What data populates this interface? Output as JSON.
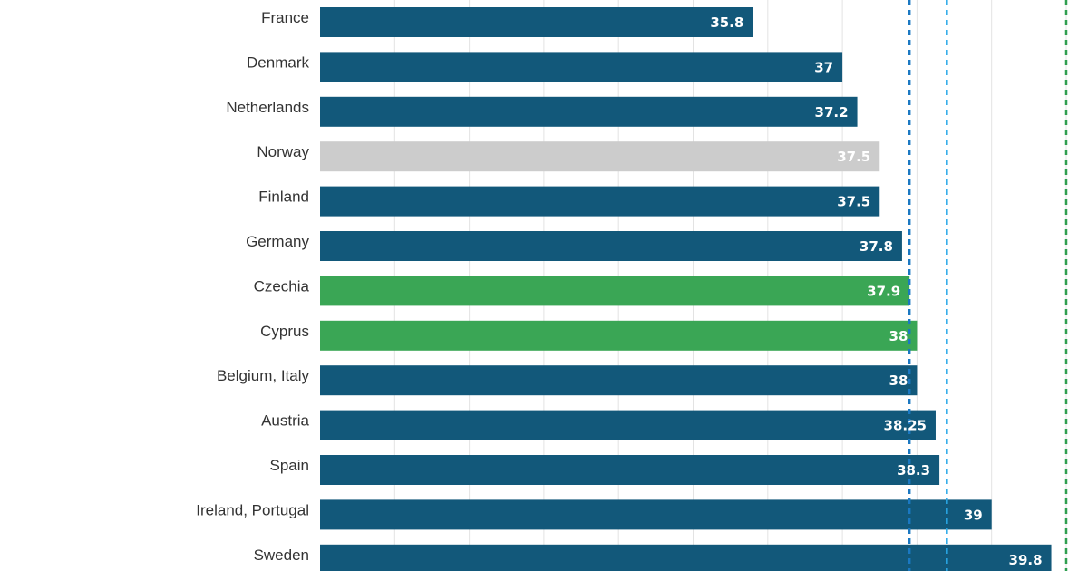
{
  "chart_data": {
    "type": "bar",
    "orientation": "horizontal",
    "categories": [
      "France",
      "Denmark",
      "Netherlands",
      "Norway",
      "Finland",
      "Germany",
      "Czechia",
      "Cyprus",
      "Belgium, Italy",
      "Austria",
      "Spain",
      "Ireland, Portugal",
      "Sweden"
    ],
    "values": [
      35.8,
      37,
      37.2,
      37.5,
      37.5,
      37.8,
      37.9,
      38,
      38,
      38.25,
      38.3,
      39,
      39.8
    ],
    "value_labels": [
      "35.8",
      "37",
      "37.2",
      "37.5",
      "37.5",
      "37.8",
      "37.9",
      "38",
      "38",
      "38.25",
      "38.3",
      "39",
      "39.8"
    ],
    "bar_colors": [
      "#12587a",
      "#12587a",
      "#12587a",
      "#cccccc",
      "#12587a",
      "#12587a",
      "#3aa655",
      "#3aa655",
      "#12587a",
      "#12587a",
      "#12587a",
      "#12587a",
      "#12587a"
    ],
    "xlim": [
      30,
      40
    ],
    "grid": true,
    "reference_lines": [
      {
        "value": 37.9,
        "color": "#1a78c2",
        "style": "dashed"
      },
      {
        "value": 38.4,
        "color": "#29a8e8",
        "style": "dashed"
      },
      {
        "value": 40,
        "color": "#2e9e4f",
        "style": "dashed"
      }
    ],
    "title": "",
    "xlabel": "",
    "ylabel": ""
  }
}
